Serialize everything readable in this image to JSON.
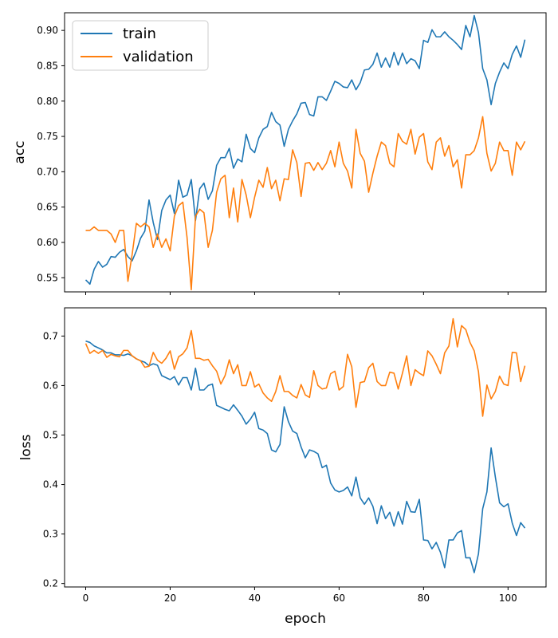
{
  "colors": {
    "train": "#1f77b4",
    "validation": "#ff7f0e"
  },
  "chart_data": [
    {
      "type": "line",
      "panel": "top",
      "ylabel": "acc",
      "xlabel": "",
      "ylim": [
        0.53,
        0.925
      ],
      "xlim": [
        -5,
        109
      ],
      "yticks": [
        0.55,
        0.6,
        0.65,
        0.7,
        0.75,
        0.8,
        0.85,
        0.9
      ],
      "ytick_labels": [
        "0.55",
        "0.60",
        "0.65",
        "0.70",
        "0.75",
        "0.80",
        "0.85",
        "0.90"
      ],
      "xticks": [
        0,
        20,
        40,
        60,
        80,
        100
      ],
      "xtick_labels": [],
      "legend": {
        "placement": "top-left",
        "entries": [
          "train",
          "validation"
        ]
      },
      "series": [
        {
          "name": "train",
          "values": [
            0.547,
            0.541,
            0.562,
            0.573,
            0.565,
            0.569,
            0.58,
            0.579,
            0.586,
            0.59,
            0.58,
            0.574,
            0.588,
            0.606,
            0.616,
            0.66,
            0.628,
            0.604,
            0.645,
            0.66,
            0.667,
            0.641,
            0.688,
            0.664,
            0.667,
            0.689,
            0.631,
            0.676,
            0.684,
            0.661,
            0.673,
            0.709,
            0.72,
            0.72,
            0.733,
            0.705,
            0.718,
            0.714,
            0.753,
            0.733,
            0.727,
            0.748,
            0.76,
            0.764,
            0.784,
            0.771,
            0.766,
            0.736,
            0.76,
            0.772,
            0.782,
            0.797,
            0.798,
            0.781,
            0.779,
            0.806,
            0.806,
            0.801,
            0.814,
            0.828,
            0.825,
            0.82,
            0.819,
            0.83,
            0.816,
            0.826,
            0.844,
            0.845,
            0.852,
            0.868,
            0.848,
            0.861,
            0.848,
            0.869,
            0.851,
            0.868,
            0.853,
            0.86,
            0.857,
            0.846,
            0.886,
            0.883,
            0.901,
            0.891,
            0.891,
            0.898,
            0.891,
            0.886,
            0.88,
            0.873,
            0.907,
            0.891,
            0.921,
            0.897,
            0.846,
            0.83,
            0.795,
            0.825,
            0.841,
            0.854,
            0.846,
            0.866,
            0.878,
            0.862,
            0.887
          ]
        },
        {
          "name": "validation",
          "values": [
            0.617,
            0.617,
            0.622,
            0.617,
            0.617,
            0.617,
            0.612,
            0.6,
            0.617,
            0.617,
            0.545,
            0.583,
            0.627,
            0.622,
            0.627,
            0.622,
            0.593,
            0.612,
            0.593,
            0.605,
            0.588,
            0.637,
            0.652,
            0.657,
            0.607,
            0.533,
            0.637,
            0.647,
            0.642,
            0.593,
            0.617,
            0.671,
            0.69,
            0.695,
            0.635,
            0.677,
            0.629,
            0.689,
            0.667,
            0.635,
            0.664,
            0.688,
            0.678,
            0.706,
            0.676,
            0.688,
            0.659,
            0.69,
            0.689,
            0.731,
            0.713,
            0.665,
            0.712,
            0.713,
            0.702,
            0.713,
            0.703,
            0.712,
            0.73,
            0.707,
            0.742,
            0.712,
            0.701,
            0.677,
            0.76,
            0.726,
            0.715,
            0.671,
            0.698,
            0.722,
            0.742,
            0.737,
            0.712,
            0.707,
            0.754,
            0.743,
            0.739,
            0.76,
            0.725,
            0.749,
            0.754,
            0.714,
            0.703,
            0.742,
            0.748,
            0.722,
            0.737,
            0.707,
            0.717,
            0.677,
            0.724,
            0.724,
            0.73,
            0.748,
            0.778,
            0.726,
            0.701,
            0.712,
            0.742,
            0.73,
            0.73,
            0.695,
            0.742,
            0.731,
            0.743
          ]
        }
      ]
    },
    {
      "type": "line",
      "panel": "bottom",
      "ylabel": "loss",
      "xlabel": "epoch",
      "ylim": [
        0.193,
        0.757
      ],
      "xlim": [
        -5,
        109
      ],
      "yticks": [
        0.2,
        0.3,
        0.4,
        0.5,
        0.6,
        0.7
      ],
      "ytick_labels": [
        "0.2",
        "0.3",
        "0.4",
        "0.5",
        "0.6",
        "0.7"
      ],
      "xticks": [
        0,
        20,
        40,
        60,
        80,
        100
      ],
      "xtick_labels": [
        "0",
        "20",
        "40",
        "60",
        "80",
        "100"
      ],
      "series": [
        {
          "name": "train",
          "values": [
            0.69,
            0.687,
            0.68,
            0.676,
            0.672,
            0.666,
            0.666,
            0.662,
            0.662,
            0.661,
            0.664,
            0.66,
            0.654,
            0.65,
            0.647,
            0.64,
            0.644,
            0.641,
            0.62,
            0.616,
            0.612,
            0.618,
            0.601,
            0.616,
            0.616,
            0.591,
            0.635,
            0.591,
            0.591,
            0.6,
            0.603,
            0.56,
            0.556,
            0.552,
            0.549,
            0.561,
            0.55,
            0.538,
            0.522,
            0.532,
            0.546,
            0.513,
            0.51,
            0.503,
            0.47,
            0.466,
            0.481,
            0.557,
            0.527,
            0.508,
            0.503,
            0.476,
            0.454,
            0.47,
            0.467,
            0.462,
            0.434,
            0.439,
            0.403,
            0.389,
            0.385,
            0.388,
            0.395,
            0.377,
            0.415,
            0.373,
            0.36,
            0.373,
            0.356,
            0.321,
            0.357,
            0.331,
            0.344,
            0.316,
            0.345,
            0.32,
            0.366,
            0.345,
            0.344,
            0.37,
            0.288,
            0.287,
            0.27,
            0.283,
            0.263,
            0.232,
            0.288,
            0.288,
            0.302,
            0.307,
            0.252,
            0.252,
            0.222,
            0.26,
            0.351,
            0.385,
            0.474,
            0.415,
            0.363,
            0.355,
            0.361,
            0.322,
            0.297,
            0.323,
            0.312
          ]
        },
        {
          "name": "validation",
          "values": [
            0.685,
            0.665,
            0.671,
            0.665,
            0.671,
            0.657,
            0.663,
            0.66,
            0.658,
            0.671,
            0.671,
            0.66,
            0.654,
            0.65,
            0.637,
            0.639,
            0.667,
            0.651,
            0.645,
            0.655,
            0.67,
            0.633,
            0.658,
            0.664,
            0.676,
            0.711,
            0.655,
            0.655,
            0.651,
            0.653,
            0.64,
            0.629,
            0.603,
            0.62,
            0.652,
            0.624,
            0.642,
            0.6,
            0.6,
            0.628,
            0.597,
            0.603,
            0.585,
            0.575,
            0.568,
            0.588,
            0.62,
            0.588,
            0.588,
            0.58,
            0.575,
            0.602,
            0.581,
            0.576,
            0.63,
            0.6,
            0.593,
            0.595,
            0.624,
            0.629,
            0.591,
            0.598,
            0.663,
            0.638,
            0.556,
            0.606,
            0.608,
            0.636,
            0.645,
            0.608,
            0.6,
            0.6,
            0.627,
            0.625,
            0.593,
            0.625,
            0.66,
            0.6,
            0.632,
            0.625,
            0.62,
            0.67,
            0.66,
            0.643,
            0.624,
            0.666,
            0.68,
            0.735,
            0.678,
            0.721,
            0.713,
            0.687,
            0.67,
            0.628,
            0.538,
            0.601,
            0.573,
            0.588,
            0.619,
            0.603,
            0.6,
            0.667,
            0.666,
            0.608,
            0.64
          ]
        }
      ]
    }
  ]
}
